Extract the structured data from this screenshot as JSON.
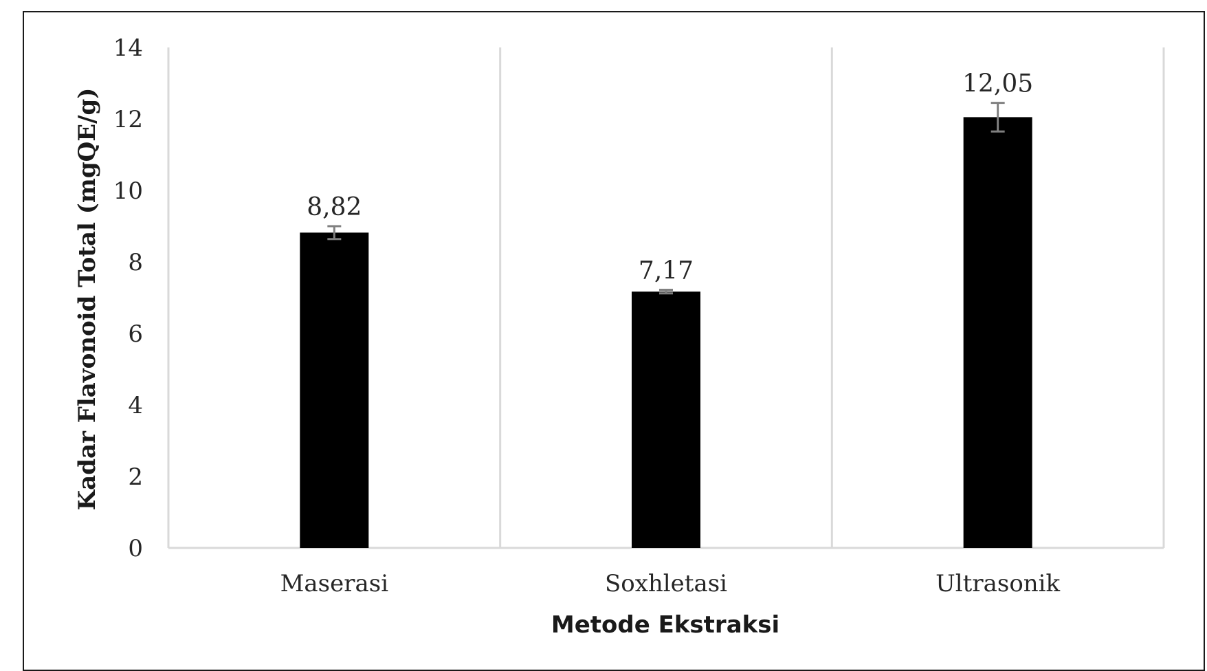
{
  "chart_data": {
    "type": "bar",
    "categories": [
      "Maserasi",
      "Soxhletasi",
      "Ultrasonik"
    ],
    "values": [
      8.82,
      7.17,
      12.05
    ],
    "value_labels": [
      "8,82",
      "7,17",
      "12,05"
    ],
    "error_bars": [
      0.18,
      0.05,
      0.4
    ],
    "title": "",
    "xlabel": "Metode Ekstraksi",
    "ylabel": "Kadar Flavonoid Total (mgQE/g)",
    "ylim": [
      0,
      14
    ],
    "yticks": [
      0,
      2,
      4,
      6,
      8,
      10,
      12,
      14
    ],
    "grid": "vertical category separators",
    "legend": "none",
    "colors": {
      "bar": "#000000",
      "error_bar": "#808080",
      "grid": "#d9d9d9",
      "text": "#262626"
    }
  }
}
